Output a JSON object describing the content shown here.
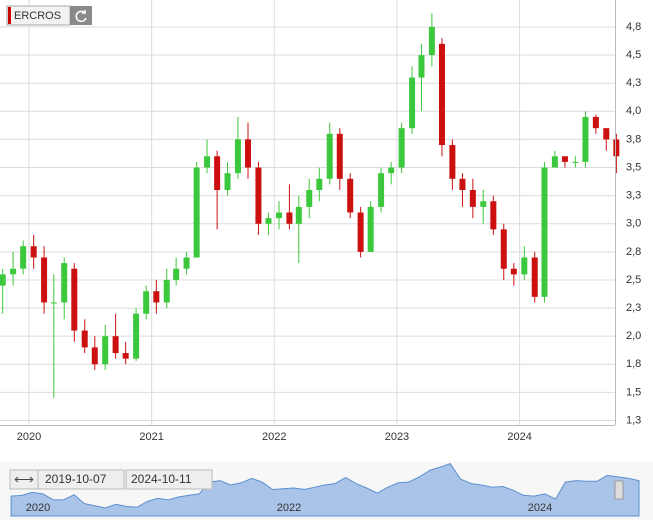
{
  "chart_data": {
    "type": "candlestick",
    "title": "ERCROS",
    "x": [
      "2019-10",
      "2019-11",
      "2019-12",
      "2020-01",
      "2020-02",
      "2020-03",
      "2020-04",
      "2020-05",
      "2020-06",
      "2020-07",
      "2020-08",
      "2020-09",
      "2020-10",
      "2020-11",
      "2020-12",
      "2021-01",
      "2021-02",
      "2021-03",
      "2021-04",
      "2021-05",
      "2021-06",
      "2021-07",
      "2021-08",
      "2021-09",
      "2021-10",
      "2021-11",
      "2021-12",
      "2022-01",
      "2022-02",
      "2022-03",
      "2022-04",
      "2022-05",
      "2022-06",
      "2022-07",
      "2022-08",
      "2022-09",
      "2022-10",
      "2022-11",
      "2022-12",
      "2023-01",
      "2023-02",
      "2023-03",
      "2023-04",
      "2023-05",
      "2023-06",
      "2023-07",
      "2023-08",
      "2023-09",
      "2023-10",
      "2023-11",
      "2023-12",
      "2024-01",
      "2024-02",
      "2024-03",
      "2024-04",
      "2024-05",
      "2024-06",
      "2024-07",
      "2024-08",
      "2024-09",
      "2024-10"
    ],
    "open": [
      2.45,
      2.55,
      2.6,
      2.8,
      2.7,
      2.3,
      2.3,
      2.6,
      2.05,
      1.9,
      1.75,
      2.0,
      1.85,
      1.8,
      2.2,
      2.4,
      2.3,
      2.5,
      2.6,
      2.7,
      3.5,
      3.6,
      3.3,
      3.45,
      3.75,
      3.5,
      3.0,
      3.05,
      3.1,
      3.0,
      3.15,
      3.3,
      3.4,
      3.8,
      3.4,
      3.1,
      2.75,
      3.15,
      3.45,
      3.5,
      3.85,
      4.3,
      4.5,
      4.6,
      3.7,
      3.4,
      3.3,
      3.15,
      3.2,
      2.95,
      2.6,
      2.55,
      2.7,
      2.35,
      3.5,
      3.6,
      3.55,
      3.55,
      3.95,
      3.85,
      3.75
    ],
    "high": [
      2.6,
      2.75,
      2.85,
      2.9,
      2.8,
      2.55,
      2.7,
      2.65,
      2.15,
      2.0,
      2.1,
      2.2,
      1.95,
      2.25,
      2.45,
      2.5,
      2.6,
      2.7,
      2.75,
      3.55,
      3.75,
      3.65,
      3.55,
      3.95,
      3.9,
      3.55,
      3.1,
      3.2,
      3.35,
      3.25,
      3.4,
      3.5,
      3.9,
      3.85,
      3.45,
      3.15,
      3.2,
      3.5,
      3.55,
      3.9,
      4.4,
      4.6,
      4.87,
      4.65,
      3.75,
      3.45,
      3.4,
      3.3,
      3.25,
      3.0,
      2.65,
      2.8,
      2.75,
      3.55,
      3.65,
      3.6,
      3.6,
      4.0,
      3.97,
      3.85,
      3.8
    ],
    "low": [
      2.2,
      2.45,
      2.55,
      2.6,
      2.2,
      1.45,
      2.15,
      1.95,
      1.85,
      1.7,
      1.7,
      1.8,
      1.75,
      1.78,
      2.15,
      2.2,
      2.25,
      2.45,
      2.55,
      2.7,
      3.45,
      2.95,
      3.25,
      3.4,
      3.4,
      2.9,
      2.9,
      2.95,
      2.95,
      2.65,
      3.05,
      3.2,
      3.35,
      3.3,
      3.05,
      2.7,
      2.75,
      3.1,
      3.35,
      3.45,
      3.8,
      4.0,
      4.4,
      3.6,
      3.3,
      3.15,
      3.05,
      3.0,
      2.9,
      2.5,
      2.45,
      2.5,
      2.3,
      2.3,
      3.5,
      3.5,
      3.5,
      3.5,
      3.8,
      3.65,
      3.45
    ],
    "close": [
      2.55,
      2.6,
      2.8,
      2.7,
      2.3,
      2.3,
      2.65,
      2.05,
      1.9,
      1.75,
      2.0,
      1.85,
      1.8,
      2.2,
      2.4,
      2.3,
      2.5,
      2.6,
      2.7,
      3.5,
      3.6,
      3.3,
      3.45,
      3.75,
      3.5,
      3.0,
      3.05,
      3.1,
      3.0,
      3.15,
      3.3,
      3.4,
      3.8,
      3.4,
      3.1,
      2.75,
      3.15,
      3.45,
      3.5,
      3.85,
      4.3,
      4.5,
      4.75,
      3.7,
      3.4,
      3.3,
      3.15,
      3.2,
      2.95,
      2.6,
      2.55,
      2.7,
      2.35,
      3.5,
      3.6,
      3.55,
      3.55,
      3.95,
      3.85,
      3.75,
      3.6
    ],
    "up_color": "#3cc83c",
    "down_color": "#cc1010",
    "xlim": [
      "2019-10-07",
      "2024-10-11"
    ],
    "xticks": [
      2020,
      2021,
      2022,
      2023,
      2024
    ],
    "ylim": [
      1.21,
      4.99
    ],
    "yticks": [
      {
        "value": 4.75,
        "label": "4,8"
      },
      {
        "value": 4.5,
        "label": "4,5"
      },
      {
        "value": 4.25,
        "label": "4,3"
      },
      {
        "value": 4.0,
        "label": "4,0"
      },
      {
        "value": 3.75,
        "label": "3,8"
      },
      {
        "value": 3.5,
        "label": "3,5"
      },
      {
        "value": 3.25,
        "label": "3,3"
      },
      {
        "value": 3.0,
        "label": "3,0"
      },
      {
        "value": 2.75,
        "label": "2,8"
      },
      {
        "value": 2.5,
        "label": "2,5"
      },
      {
        "value": 2.25,
        "label": "2,3"
      },
      {
        "value": 2.0,
        "label": "2,0"
      },
      {
        "value": 1.75,
        "label": "1,8"
      },
      {
        "value": 1.5,
        "label": "1,5"
      },
      {
        "value": 1.25,
        "label": "1,3"
      }
    ],
    "grid": true,
    "navigator_ticks": [
      2020,
      2022,
      2024
    ]
  }
}
